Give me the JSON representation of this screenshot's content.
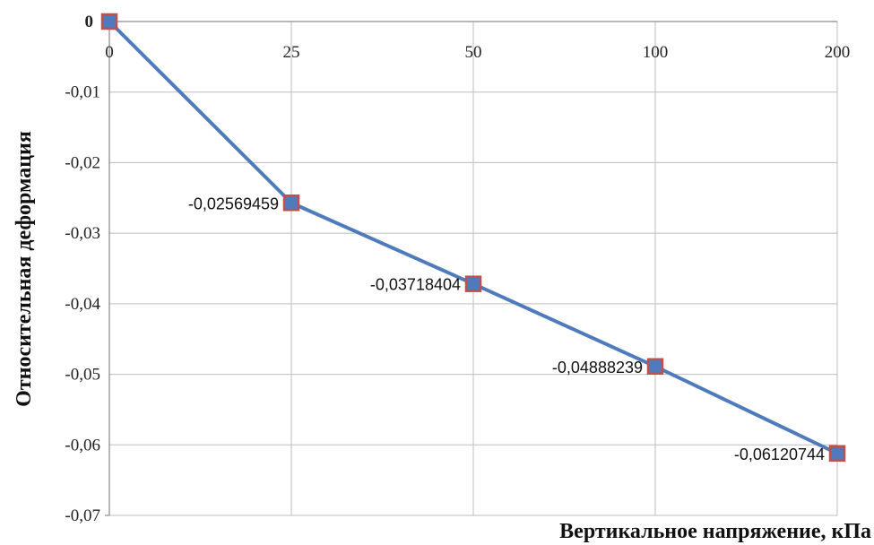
{
  "chart_data": {
    "type": "line",
    "title": "",
    "xlabel": "Вертикальное напряжение, кПа",
    "ylabel": "Относительная деформация",
    "x": [
      "0",
      "25",
      "50",
      "100",
      "200"
    ],
    "x_tick_labels": [
      "0",
      "25",
      "50",
      "100",
      "200"
    ],
    "series": [
      {
        "values": [
          0,
          -0.02569459,
          -0.03718404,
          -0.04888239,
          -0.06120744
        ],
        "data_labels": [
          "0",
          "-0,02569459",
          "-0,03718404",
          "-0,04888239",
          "-0,06120744"
        ]
      }
    ],
    "y_tick_labels": [
      "0",
      "-0,01",
      "-0,02",
      "-0,03",
      "-0,04",
      "-0,05",
      "-0,06",
      "-0,07"
    ],
    "y_ticks": [
      0,
      -0.01,
      -0.02,
      -0.03,
      -0.04,
      -0.05,
      -0.06,
      -0.07
    ],
    "ylim": [
      -0.07,
      0
    ],
    "x_axis_position": "top",
    "grid": true,
    "line_color": "#4f7bbd",
    "marker_fill": "#4f7bbd",
    "marker_edge": "#c0504d"
  }
}
